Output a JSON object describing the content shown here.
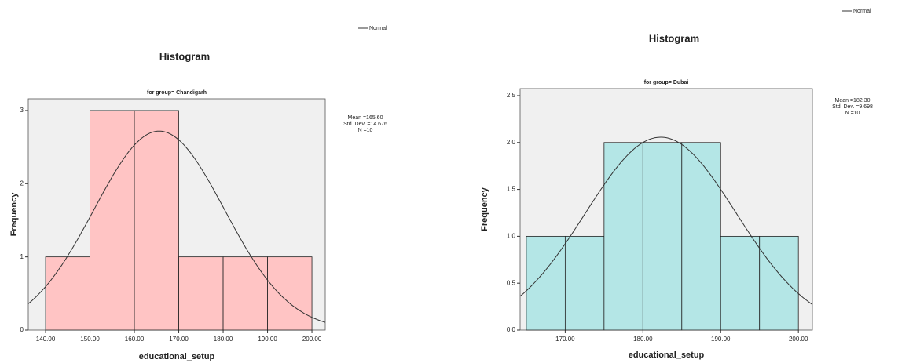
{
  "chart_data": [
    {
      "type": "histogram",
      "title": "Histogram",
      "subtitle": "for group= Chandigarh",
      "x_label": "educational_setup",
      "y_label": "Frequency",
      "bins": [
        140,
        150,
        160,
        170,
        180,
        190,
        200
      ],
      "values": [
        1,
        3,
        3,
        1,
        1,
        1
      ],
      "color": "#ffc4c4",
      "xlim": [
        136.1,
        203
      ],
      "ylim": [
        0,
        3.16
      ],
      "xticks": [
        {
          "value": 140,
          "label": "140.00"
        },
        {
          "value": 150,
          "label": "150.00"
        },
        {
          "value": 160,
          "label": "160.00"
        },
        {
          "value": 170,
          "label": "170.00"
        },
        {
          "value": 180,
          "label": "180.00"
        },
        {
          "value": 190,
          "label": "190.00"
        },
        {
          "value": 200,
          "label": "200.00"
        }
      ],
      "yticks": [
        0,
        1,
        2,
        3
      ],
      "legend": "Normal",
      "normal": {
        "mean": {
          "value": 165.6,
          "label": "Mean =165.60"
        },
        "std_dev": {
          "value": 14.676,
          "label": "Std. Dev. =14.676"
        },
        "n": {
          "value": 10,
          "label": "N =10"
        }
      }
    },
    {
      "type": "histogram",
      "title": "Histogram",
      "subtitle": "for group= Dubai",
      "x_label": "educational_setup",
      "y_label": "Frequency",
      "bins": [
        165,
        170,
        175,
        180,
        185,
        190,
        195,
        200
      ],
      "values": [
        1,
        1,
        2,
        2,
        2,
        1,
        1
      ],
      "color": "#b4e6e6",
      "xlim": [
        164.2,
        201.8
      ],
      "ylim": [
        0,
        2.575
      ],
      "xticks": [
        {
          "value": 170,
          "label": "170.00"
        },
        {
          "value": 180,
          "label": "180.00"
        },
        {
          "value": 190,
          "label": "190.00"
        },
        {
          "value": 200,
          "label": "200.00"
        }
      ],
      "yticks": [
        {
          "value": 0,
          "label": "0.0"
        },
        0.5,
        {
          "value": 1,
          "label": "1.0"
        },
        1.5,
        {
          "value": 2,
          "label": "2.0"
        },
        2.5
      ],
      "legend": "Normal",
      "normal": {
        "mean": {
          "value": 182.3,
          "label": "Mean =182.30"
        },
        "std_dev": {
          "value": 9.698,
          "label": "Std. Dev. =9.698"
        },
        "n": {
          "value": 10,
          "label": "N =10"
        }
      }
    }
  ]
}
